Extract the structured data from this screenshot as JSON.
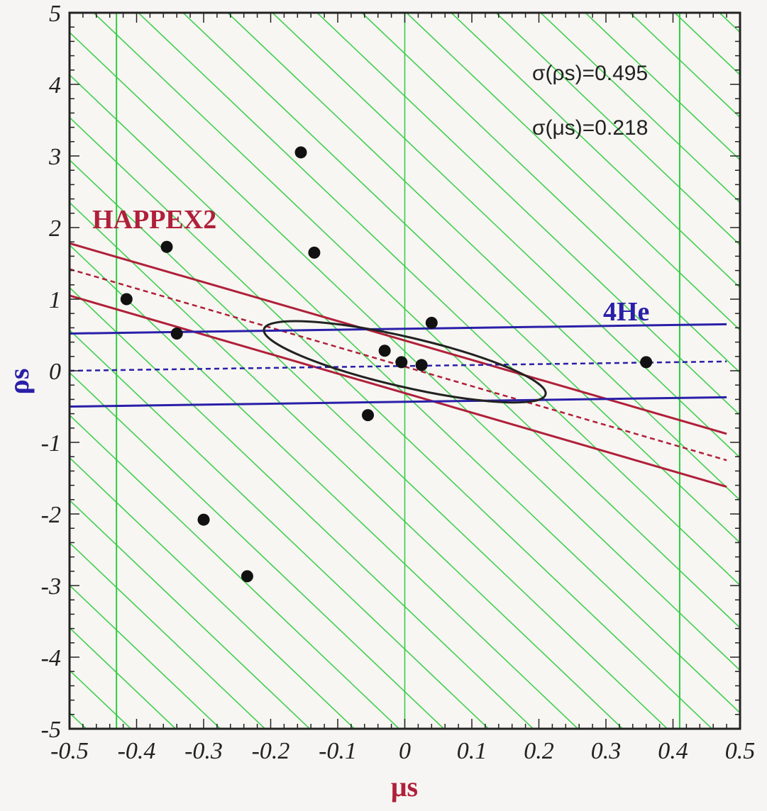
{
  "chart_data": {
    "type": "scatter",
    "xlabel": "μs",
    "ylabel": "ρs",
    "xlim": [
      -0.5,
      0.5
    ],
    "ylim": [
      -5,
      5
    ],
    "xticks": [
      "-0.5",
      "-0.4",
      "-0.3",
      "-0.2",
      "-0.1",
      "0",
      "0.1",
      "0.2",
      "0.3",
      "0.4",
      "0.5"
    ],
    "yticks": [
      "-5",
      "-4",
      "-3",
      "-2",
      "-1",
      "0",
      "1",
      "2",
      "3",
      "4",
      "5"
    ],
    "points": [
      {
        "x": -0.155,
        "y": 3.05
      },
      {
        "x": -0.355,
        "y": 1.73
      },
      {
        "x": -0.135,
        "y": 1.65
      },
      {
        "x": -0.415,
        "y": 1.0
      },
      {
        "x": -0.34,
        "y": 0.52
      },
      {
        "x": 0.04,
        "y": 0.67
      },
      {
        "x": -0.03,
        "y": 0.28
      },
      {
        "x": -0.005,
        "y": 0.12
      },
      {
        "x": 0.025,
        "y": 0.08
      },
      {
        "x": 0.36,
        "y": 0.12
      },
      {
        "x": -0.055,
        "y": -0.62
      },
      {
        "x": -0.3,
        "y": -2.08
      },
      {
        "x": -0.235,
        "y": -2.87
      }
    ],
    "bands": [
      {
        "name": "HAPPEX2",
        "color": "#b0203a",
        "upper": [
          [
            -0.5,
            1.78
          ],
          [
            0.48,
            -0.88
          ]
        ],
        "center": [
          [
            -0.5,
            1.42
          ],
          [
            0.48,
            -1.25
          ]
        ],
        "lower": [
          [
            -0.5,
            1.05
          ],
          [
            0.48,
            -1.62
          ]
        ]
      },
      {
        "name": "4He",
        "color": "#2a1fa8",
        "upper": [
          [
            -0.5,
            0.52
          ],
          [
            0.48,
            0.65
          ]
        ],
        "center": [
          [
            -0.5,
            0.0
          ],
          [
            0.48,
            0.13
          ]
        ],
        "lower": [
          [
            -0.5,
            -0.5
          ],
          [
            0.48,
            -0.37
          ]
        ]
      }
    ],
    "excluded_region": {
      "color": "#2ecc40",
      "left": [
        -0.5,
        -0.43
      ],
      "right": [
        0.41,
        0.5
      ]
    },
    "ellipse": {
      "center": [
        0.0,
        0.05
      ],
      "semi_major_deg_points": [
        [
          -0.21,
          0.58
        ],
        [
          0.21,
          -0.33
        ]
      ],
      "minor_half_width": 0.06
    },
    "annotations": {
      "happex2": "HAPPEX2",
      "he4": "4He",
      "sigma_rho": "σ(ρs)=0.495",
      "sigma_mu": "σ(μs)=0.218"
    },
    "colors": {
      "happex2": "#b0203a",
      "he4": "#2a1fa8",
      "hatch": "#2ecc40",
      "points": "#111111"
    }
  }
}
